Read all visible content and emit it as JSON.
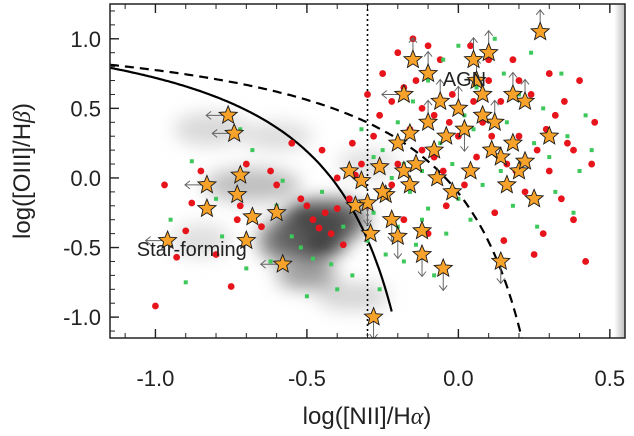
{
  "chart_data": {
    "type": "scatter",
    "title": "",
    "xlabel_parts": [
      "log([NII]/H",
      "α",
      ")"
    ],
    "ylabel_parts": [
      "log([OIII]/H",
      "β",
      ")"
    ],
    "xlim": [
      -1.15,
      0.55
    ],
    "ylim": [
      -1.15,
      1.25
    ],
    "xticks": [
      -1.0,
      -0.5,
      0.0,
      0.5
    ],
    "xtick_labels": [
      "-1.0",
      "-0.5",
      "0.0",
      "0.5"
    ],
    "yticks": [
      -1.0,
      -0.5,
      0.0,
      0.5,
      1.0
    ],
    "ytick_labels": [
      "-1.0",
      "-0.5",
      "0.0",
      "0.5",
      "1.0"
    ],
    "annotations": [
      {
        "text": "AGN",
        "x": 0.02,
        "y": 0.66
      },
      {
        "text": "Star-forming",
        "x": -0.88,
        "y": -0.56
      }
    ],
    "reference_lines": {
      "vertical_dotted_x": -0.3,
      "kauffmann_solid": "y = 0.61/(x-0.05)+1.3",
      "kewley_dashed": "y = 0.61/(x-0.47)+1.19"
    },
    "density_blobs": [
      {
        "x": -0.48,
        "y": -0.38,
        "sx": 0.12,
        "sy": 0.22,
        "w": 0.95
      },
      {
        "x": -0.4,
        "y": -0.3,
        "sx": 0.1,
        "sy": 0.15,
        "w": 0.7
      },
      {
        "x": -0.58,
        "y": -0.45,
        "sx": 0.08,
        "sy": 0.15,
        "w": 0.6
      },
      {
        "x": -0.5,
        "y": -0.7,
        "sx": 0.1,
        "sy": 0.1,
        "w": 0.45
      },
      {
        "x": -0.68,
        "y": -0.05,
        "sx": 0.16,
        "sy": 0.12,
        "w": 0.3
      },
      {
        "x": -0.82,
        "y": 0.35,
        "sx": 0.12,
        "sy": 0.12,
        "w": 0.18
      },
      {
        "x": -0.6,
        "y": 0.3,
        "sx": 0.12,
        "sy": 0.1,
        "w": 0.16
      },
      {
        "x": -0.35,
        "y": -0.85,
        "sx": 0.12,
        "sy": 0.1,
        "w": 0.2
      },
      {
        "x": -0.85,
        "y": -0.45,
        "sx": 0.1,
        "sy": 0.12,
        "w": 0.15
      },
      {
        "x": -0.3,
        "y": 0.1,
        "sx": 0.1,
        "sy": 0.1,
        "w": 0.15
      }
    ],
    "series": [
      {
        "name": "red points",
        "marker": "circle",
        "color": "#e8141b",
        "points": [
          [
            -1.0,
            -0.92
          ],
          [
            -0.93,
            -0.57
          ],
          [
            -0.9,
            -0.38
          ],
          [
            -0.88,
            -0.18
          ],
          [
            -0.97,
            -0.05
          ],
          [
            -0.75,
            -0.78
          ],
          [
            -0.73,
            -0.3
          ],
          [
            -0.72,
            -0.2
          ],
          [
            -0.62,
            0.05
          ],
          [
            -0.6,
            -0.05
          ],
          [
            -0.55,
            0.25
          ],
          [
            -0.52,
            -0.15
          ],
          [
            -0.5,
            -0.2
          ],
          [
            -0.48,
            -0.3
          ],
          [
            -0.46,
            -0.36
          ],
          [
            -0.44,
            -0.25
          ],
          [
            -0.42,
            -0.4
          ],
          [
            -0.4,
            -0.22
          ],
          [
            -0.38,
            -0.48
          ],
          [
            -0.36,
            -0.15
          ],
          [
            -0.34,
            0.02
          ],
          [
            -0.32,
            0.1
          ],
          [
            -0.3,
            -0.2
          ],
          [
            -0.28,
            0.3
          ],
          [
            -0.26,
            0.45
          ],
          [
            -0.24,
            -0.12
          ],
          [
            -0.22,
            0.55
          ],
          [
            -0.2,
            0.1
          ],
          [
            -0.18,
            -0.3
          ],
          [
            -0.16,
            0.35
          ],
          [
            -0.14,
            0.7
          ],
          [
            -0.12,
            0.2
          ],
          [
            -0.1,
            -0.4
          ],
          [
            -0.08,
            0.45
          ],
          [
            -0.06,
            0.85
          ],
          [
            -0.05,
            0.05
          ],
          [
            -0.04,
            -0.2
          ],
          [
            -0.02,
            0.6
          ],
          [
            0.0,
            0.3
          ],
          [
            0.02,
            -0.05
          ],
          [
            0.04,
            0.95
          ],
          [
            0.06,
            0.15
          ],
          [
            0.08,
            0.4
          ],
          [
            0.1,
            0.7
          ],
          [
            0.12,
            -0.25
          ],
          [
            0.14,
            0.55
          ],
          [
            0.16,
            0.1
          ],
          [
            0.18,
            0.85
          ],
          [
            0.2,
            0.3
          ],
          [
            0.22,
            -0.1
          ],
          [
            0.24,
            0.6
          ],
          [
            0.26,
            0.2
          ],
          [
            0.28,
            -0.4
          ],
          [
            0.3,
            0.05
          ],
          [
            0.32,
            0.45
          ],
          [
            0.34,
            -0.15
          ],
          [
            0.36,
            0.25
          ],
          [
            0.38,
            -0.3
          ],
          [
            0.4,
            0.7
          ],
          [
            0.42,
            -0.6
          ],
          [
            0.44,
            0.1
          ],
          [
            -0.3,
            0.6
          ],
          [
            -0.25,
            0.75
          ],
          [
            -0.2,
            0.9
          ],
          [
            -0.15,
            1.0
          ],
          [
            -0.1,
            0.95
          ],
          [
            -0.35,
            0.25
          ],
          [
            -0.45,
            0.2
          ],
          [
            -0.65,
            -0.35
          ],
          [
            -0.7,
            0.1
          ],
          [
            -0.8,
            -0.55
          ],
          [
            -0.85,
            0.05
          ],
          [
            -0.12,
            0.5
          ],
          [
            -0.08,
            0.15
          ],
          [
            -0.03,
            0.4
          ],
          [
            0.05,
            0.55
          ],
          [
            0.11,
            0.3
          ],
          [
            0.19,
            0.05
          ],
          [
            0.25,
            -0.55
          ],
          [
            0.29,
            0.35
          ],
          [
            0.35,
            0.55
          ],
          [
            0.15,
            -0.45
          ],
          [
            -0.18,
            0.65
          ],
          [
            -0.22,
            -0.05
          ],
          [
            0.1,
            0.85
          ],
          [
            0.2,
            0.7
          ],
          [
            0.3,
            0.75
          ],
          [
            0.38,
            0.2
          ],
          [
            0.45,
            0.4
          ],
          [
            -0.4,
            0.0
          ]
        ]
      },
      {
        "name": "green points",
        "marker": "square",
        "color": "#3cc85a",
        "points": [
          [
            -0.95,
            -0.3
          ],
          [
            -0.9,
            -0.75
          ],
          [
            -0.88,
            0.12
          ],
          [
            -0.8,
            -0.15
          ],
          [
            -0.78,
            -0.42
          ],
          [
            -0.68,
            0.2
          ],
          [
            -0.62,
            -0.6
          ],
          [
            -0.58,
            -0.02
          ],
          [
            -0.55,
            -0.42
          ],
          [
            -0.52,
            -0.5
          ],
          [
            -0.48,
            -0.58
          ],
          [
            -0.45,
            -0.1
          ],
          [
            -0.42,
            -0.62
          ],
          [
            -0.38,
            -0.35
          ],
          [
            -0.35,
            -0.7
          ],
          [
            -0.33,
            -0.05
          ],
          [
            -0.3,
            -0.45
          ],
          [
            -0.28,
            -0.25
          ],
          [
            -0.26,
            -0.8
          ],
          [
            -0.24,
            -0.55
          ],
          [
            -0.22,
            0.0
          ],
          [
            -0.2,
            -0.35
          ],
          [
            -0.18,
            -0.6
          ],
          [
            -0.16,
            -0.1
          ],
          [
            -0.14,
            -0.48
          ],
          [
            -0.12,
            0.05
          ],
          [
            -0.1,
            -0.22
          ],
          [
            -0.08,
            -0.7
          ],
          [
            -0.06,
            0.25
          ],
          [
            -0.04,
            -0.4
          ],
          [
            -0.02,
            0.1
          ],
          [
            0.0,
            -0.15
          ],
          [
            0.02,
            0.45
          ],
          [
            0.04,
            -0.3
          ],
          [
            0.06,
            0.65
          ],
          [
            0.08,
            -0.05
          ],
          [
            0.1,
            0.2
          ],
          [
            0.12,
            1.0
          ],
          [
            0.14,
            0.05
          ],
          [
            0.16,
            0.4
          ],
          [
            0.18,
            -0.2
          ],
          [
            0.2,
            0.6
          ],
          [
            0.22,
            0.1
          ],
          [
            0.24,
            0.9
          ],
          [
            0.26,
            -0.35
          ],
          [
            0.28,
            0.5
          ],
          [
            0.3,
            0.15
          ],
          [
            0.32,
            -0.1
          ],
          [
            0.34,
            0.75
          ],
          [
            0.36,
            0.3
          ],
          [
            0.38,
            -0.25
          ],
          [
            0.4,
            0.05
          ],
          [
            0.42,
            0.45
          ],
          [
            0.44,
            0.2
          ],
          [
            -0.32,
            0.35
          ],
          [
            -0.28,
            0.15
          ],
          [
            -0.2,
            0.4
          ],
          [
            -0.15,
            0.55
          ],
          [
            -0.1,
            0.7
          ],
          [
            -0.05,
            0.85
          ],
          [
            0.0,
            0.95
          ],
          [
            -0.4,
            -0.8
          ],
          [
            -0.5,
            -0.85
          ],
          [
            -0.6,
            -0.2
          ],
          [
            -0.7,
            -0.65
          ],
          [
            -0.72,
            0.35
          ],
          [
            -0.25,
            0.2
          ],
          [
            -0.18,
            0.1
          ],
          [
            -0.12,
            -0.3
          ],
          [
            0.05,
            0.35
          ],
          [
            0.15,
            0.75
          ],
          [
            0.25,
            0.25
          ]
        ]
      },
      {
        "name": "orange stars",
        "marker": "star",
        "color": "#f7a22a",
        "stroke": "#1a1a1a",
        "points": [
          [
            -0.96,
            -0.45
          ],
          [
            -0.83,
            -0.22
          ],
          [
            -0.83,
            -0.05
          ],
          [
            -0.76,
            0.45
          ],
          [
            -0.74,
            0.32
          ],
          [
            -0.73,
            -0.12
          ],
          [
            -0.72,
            0.02
          ],
          [
            -0.7,
            -0.45
          ],
          [
            -0.68,
            -0.28
          ],
          [
            -0.6,
            -0.25
          ],
          [
            -0.58,
            -0.62
          ],
          [
            -0.32,
            -0.02
          ],
          [
            -0.3,
            -0.18
          ],
          [
            -0.29,
            -0.4
          ],
          [
            -0.28,
            -1.0
          ],
          [
            -0.26,
            0.08
          ],
          [
            -0.24,
            -0.12
          ],
          [
            -0.22,
            -0.3
          ],
          [
            -0.2,
            -0.42
          ],
          [
            -0.18,
            0.05
          ],
          [
            -0.16,
            -0.05
          ],
          [
            -0.14,
            0.1
          ],
          [
            -0.12,
            -0.55
          ],
          [
            -0.1,
            0.4
          ],
          [
            -0.08,
            0.2
          ],
          [
            -0.06,
            0.55
          ],
          [
            -0.04,
            0.3
          ],
          [
            -0.02,
            -0.1
          ],
          [
            0.0,
            0.5
          ],
          [
            0.02,
            0.35
          ],
          [
            0.04,
            0.05
          ],
          [
            0.06,
            0.7
          ],
          [
            0.08,
            0.6
          ],
          [
            0.1,
            0.9
          ],
          [
            0.12,
            0.4
          ],
          [
            0.14,
            0.15
          ],
          [
            0.16,
            -0.05
          ],
          [
            0.18,
            0.25
          ],
          [
            0.2,
            0.05
          ],
          [
            0.22,
            0.55
          ],
          [
            0.25,
            -0.15
          ],
          [
            0.27,
            1.05
          ],
          [
            0.3,
            0.3
          ],
          [
            -0.1,
            0.75
          ],
          [
            -0.15,
            0.85
          ],
          [
            -0.18,
            0.6
          ],
          [
            -0.25,
            -0.1
          ],
          [
            -0.05,
            -0.65
          ],
          [
            0.14,
            -0.6
          ],
          [
            -0.36,
            0.05
          ],
          [
            -0.34,
            -0.2
          ],
          [
            -0.2,
            0.25
          ],
          [
            0.05,
            0.85
          ],
          [
            0.18,
            0.6
          ],
          [
            -0.12,
            -0.38
          ],
          [
            0.08,
            0.45
          ],
          [
            0.11,
            0.2
          ],
          [
            -0.07,
            0.0
          ],
          [
            0.22,
            0.12
          ],
          [
            -0.16,
            0.32
          ]
        ]
      }
    ],
    "error_arrows": [
      {
        "x": -0.76,
        "y": 0.45,
        "dir": "left"
      },
      {
        "x": -0.74,
        "y": 0.32,
        "dir": "left"
      },
      {
        "x": -0.83,
        "y": -0.05,
        "dir": "left"
      },
      {
        "x": -0.96,
        "y": -0.45,
        "dir": "left"
      },
      {
        "x": -0.58,
        "y": -0.62,
        "dir": "left"
      },
      {
        "x": -0.28,
        "y": -1.0,
        "dir": "down"
      },
      {
        "x": -0.05,
        "y": -0.65,
        "dir": "down"
      },
      {
        "x": 0.14,
        "y": -0.6,
        "dir": "down"
      },
      {
        "x": -0.12,
        "y": -0.55,
        "dir": "down"
      },
      {
        "x": -0.1,
        "y": 0.4,
        "dir": "up"
      },
      {
        "x": -0.06,
        "y": 0.55,
        "dir": "up"
      },
      {
        "x": 0.0,
        "y": 0.5,
        "dir": "up"
      },
      {
        "x": 0.06,
        "y": 0.7,
        "dir": "up"
      },
      {
        "x": 0.1,
        "y": 0.9,
        "dir": "up"
      },
      {
        "x": 0.27,
        "y": 1.05,
        "dir": "up"
      },
      {
        "x": -0.15,
        "y": 0.85,
        "dir": "up"
      },
      {
        "x": -0.1,
        "y": 0.75,
        "dir": "up"
      },
      {
        "x": 0.22,
        "y": 0.55,
        "dir": "up"
      },
      {
        "x": 0.05,
        "y": 0.85,
        "dir": "up"
      },
      {
        "x": -0.2,
        "y": -0.42,
        "dir": "down"
      },
      {
        "x": -0.22,
        "y": -0.3,
        "dir": "down"
      },
      {
        "x": 0.02,
        "y": 0.35,
        "dir": "down"
      },
      {
        "x": -0.3,
        "y": -0.18,
        "dir": "down"
      },
      {
        "x": -0.18,
        "y": 0.6,
        "dir": "left"
      },
      {
        "x": 0.12,
        "y": 0.4,
        "dir": "up"
      },
      {
        "x": 0.18,
        "y": 0.6,
        "dir": "up"
      }
    ]
  }
}
